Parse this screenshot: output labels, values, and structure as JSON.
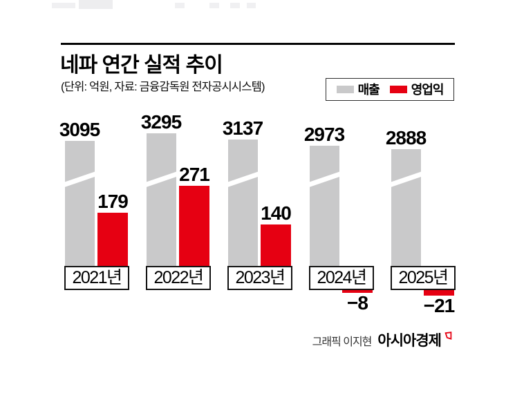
{
  "header": {
    "title": "네파 연간 실적 추이",
    "unit_source": "(단위: 억원, 자료: 금융감독원 전자공시시스템)"
  },
  "legend": {
    "items": [
      {
        "label": "매출",
        "color": "#c9c9ca"
      },
      {
        "label": "영업익",
        "color": "#e60012"
      }
    ]
  },
  "chart_data": {
    "type": "bar",
    "title": "네파 연간 실적 추이",
    "unit": "억원",
    "source": "금융감독원 전자공시시스템",
    "categories": [
      "2021년",
      "2022년",
      "2023년",
      "2024년",
      "2025년"
    ],
    "series": [
      {
        "name": "매출",
        "color": "#c9c9ca",
        "values": [
          3095,
          3295,
          3137,
          2973,
          2888
        ]
      },
      {
        "name": "영업익",
        "color": "#e60012",
        "values": [
          179,
          271,
          140,
          -8,
          -21
        ]
      }
    ],
    "value_labels": true,
    "legend_position": "top-right",
    "grid": false,
    "notes": "revenue bars drawn with axis-break slash; negative profit bars hang below year boxes"
  },
  "credit": {
    "text": "그래픽 이지현",
    "brand": "아시아경제"
  }
}
